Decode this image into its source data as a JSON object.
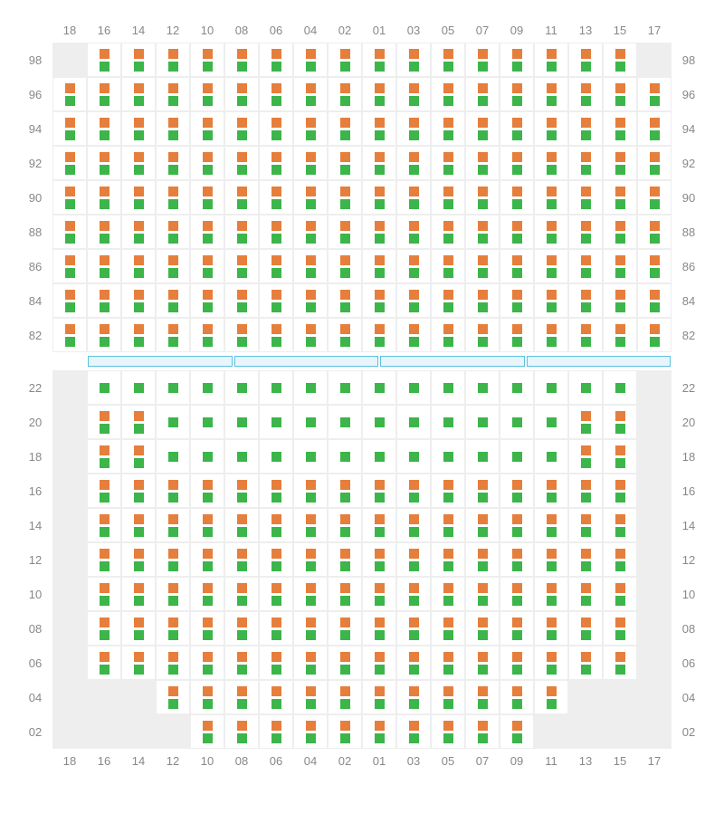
{
  "colors": {
    "seat_top": "#e67e3c",
    "seat_bottom": "#3cb54a",
    "empty_bg": "#eeeeee",
    "cell_bg": "#ffffff",
    "grid_border": "#eeeeee",
    "divider_border": "#5bc0de",
    "divider_fill": "#e8f6fb",
    "label_color": "#888888"
  },
  "columns": [
    "18",
    "16",
    "14",
    "12",
    "10",
    "08",
    "06",
    "04",
    "02",
    "01",
    "03",
    "05",
    "07",
    "09",
    "11",
    "13",
    "15",
    "17"
  ],
  "upper_section": {
    "rows": [
      {
        "label": "98",
        "cells": [
          "E",
          "B",
          "B",
          "B",
          "B",
          "B",
          "B",
          "B",
          "B",
          "B",
          "B",
          "B",
          "B",
          "B",
          "B",
          "B",
          "B",
          "E"
        ]
      },
      {
        "label": "96",
        "cells": [
          "B",
          "B",
          "B",
          "B",
          "B",
          "B",
          "B",
          "B",
          "B",
          "B",
          "B",
          "B",
          "B",
          "B",
          "B",
          "B",
          "B",
          "B"
        ]
      },
      {
        "label": "94",
        "cells": [
          "B",
          "B",
          "B",
          "B",
          "B",
          "B",
          "B",
          "B",
          "B",
          "B",
          "B",
          "B",
          "B",
          "B",
          "B",
          "B",
          "B",
          "B"
        ]
      },
      {
        "label": "92",
        "cells": [
          "B",
          "B",
          "B",
          "B",
          "B",
          "B",
          "B",
          "B",
          "B",
          "B",
          "B",
          "B",
          "B",
          "B",
          "B",
          "B",
          "B",
          "B"
        ]
      },
      {
        "label": "90",
        "cells": [
          "B",
          "B",
          "B",
          "B",
          "B",
          "B",
          "B",
          "B",
          "B",
          "B",
          "B",
          "B",
          "B",
          "B",
          "B",
          "B",
          "B",
          "B"
        ]
      },
      {
        "label": "88",
        "cells": [
          "B",
          "B",
          "B",
          "B",
          "B",
          "B",
          "B",
          "B",
          "B",
          "B",
          "B",
          "B",
          "B",
          "B",
          "B",
          "B",
          "B",
          "B"
        ]
      },
      {
        "label": "86",
        "cells": [
          "B",
          "B",
          "B",
          "B",
          "B",
          "B",
          "B",
          "B",
          "B",
          "B",
          "B",
          "B",
          "B",
          "B",
          "B",
          "B",
          "B",
          "B"
        ]
      },
      {
        "label": "84",
        "cells": [
          "B",
          "B",
          "B",
          "B",
          "B",
          "B",
          "B",
          "B",
          "B",
          "B",
          "B",
          "B",
          "B",
          "B",
          "B",
          "B",
          "B",
          "B"
        ]
      },
      {
        "label": "82",
        "cells": [
          "B",
          "B",
          "B",
          "B",
          "B",
          "B",
          "B",
          "B",
          "B",
          "B",
          "B",
          "B",
          "B",
          "B",
          "B",
          "B",
          "B",
          "B"
        ]
      }
    ]
  },
  "divider_segments": 4,
  "lower_section": {
    "rows": [
      {
        "label": "22",
        "cells": [
          "E",
          "G",
          "G",
          "G",
          "G",
          "G",
          "G",
          "G",
          "G",
          "G",
          "G",
          "G",
          "G",
          "G",
          "G",
          "G",
          "G",
          "E"
        ]
      },
      {
        "label": "20",
        "cells": [
          "E",
          "B",
          "B",
          "G",
          "G",
          "G",
          "G",
          "G",
          "G",
          "G",
          "G",
          "G",
          "G",
          "G",
          "G",
          "B",
          "B",
          "E"
        ]
      },
      {
        "label": "18",
        "cells": [
          "E",
          "B",
          "B",
          "G",
          "G",
          "G",
          "G",
          "G",
          "G",
          "G",
          "G",
          "G",
          "G",
          "G",
          "G",
          "B",
          "B",
          "E"
        ]
      },
      {
        "label": "16",
        "cells": [
          "E",
          "B",
          "B",
          "B",
          "B",
          "B",
          "B",
          "B",
          "B",
          "B",
          "B",
          "B",
          "B",
          "B",
          "B",
          "B",
          "B",
          "E"
        ]
      },
      {
        "label": "14",
        "cells": [
          "E",
          "B",
          "B",
          "B",
          "B",
          "B",
          "B",
          "B",
          "B",
          "B",
          "B",
          "B",
          "B",
          "B",
          "B",
          "B",
          "B",
          "E"
        ]
      },
      {
        "label": "12",
        "cells": [
          "E",
          "B",
          "B",
          "B",
          "B",
          "B",
          "B",
          "B",
          "B",
          "B",
          "B",
          "B",
          "B",
          "B",
          "B",
          "B",
          "B",
          "E"
        ]
      },
      {
        "label": "10",
        "cells": [
          "E",
          "B",
          "B",
          "B",
          "B",
          "B",
          "B",
          "B",
          "B",
          "B",
          "B",
          "B",
          "B",
          "B",
          "B",
          "B",
          "B",
          "E"
        ]
      },
      {
        "label": "08",
        "cells": [
          "E",
          "B",
          "B",
          "B",
          "B",
          "B",
          "B",
          "B",
          "B",
          "B",
          "B",
          "B",
          "B",
          "B",
          "B",
          "B",
          "B",
          "E"
        ]
      },
      {
        "label": "06",
        "cells": [
          "E",
          "B",
          "B",
          "B",
          "B",
          "B",
          "B",
          "B",
          "B",
          "B",
          "B",
          "B",
          "B",
          "B",
          "B",
          "B",
          "B",
          "E"
        ]
      },
      {
        "label": "04",
        "cells": [
          "E",
          "E",
          "E",
          "B",
          "B",
          "B",
          "B",
          "B",
          "B",
          "B",
          "B",
          "B",
          "B",
          "B",
          "B",
          "E",
          "E",
          "E"
        ]
      },
      {
        "label": "02",
        "cells": [
          "E",
          "E",
          "E",
          "E",
          "B",
          "B",
          "B",
          "B",
          "B",
          "B",
          "B",
          "B",
          "B",
          "B",
          "E",
          "E",
          "E",
          "E"
        ]
      }
    ]
  }
}
